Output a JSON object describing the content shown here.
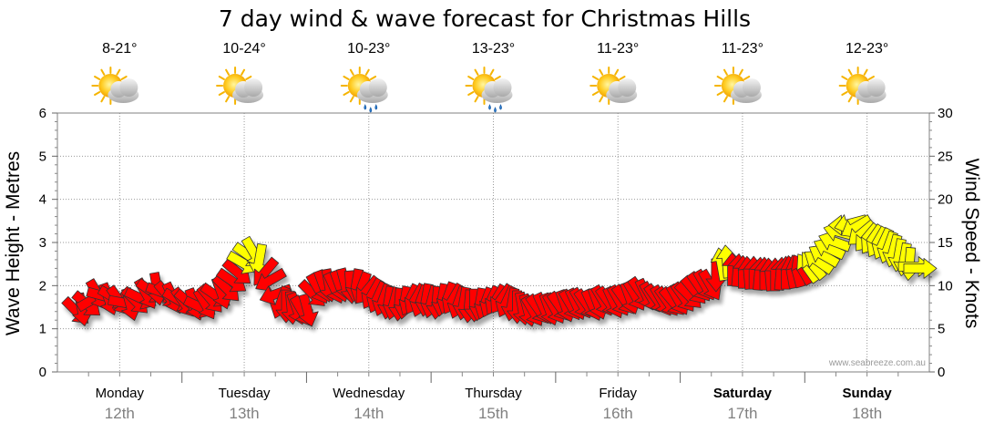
{
  "chart_data": {
    "type": "line",
    "title": "7 day wind & wave forecast for Christmas Hills",
    "ylabel": "Wave Height - Metres",
    "y2label": "Wind Speed - Knots",
    "ylim": [
      0,
      6
    ],
    "y2lim": [
      0,
      30
    ],
    "yticks": [
      "0",
      "1",
      "2",
      "3",
      "4",
      "5",
      "6"
    ],
    "y2ticks": [
      "0",
      "5",
      "10",
      "15",
      "20",
      "25",
      "30"
    ],
    "grid": true,
    "credit": "www.seabreeze.com.au",
    "days": [
      {
        "name": "Monday",
        "date": "12th",
        "temp": "8-21°",
        "icon": "partly-cloudy-icon",
        "weekend": false
      },
      {
        "name": "Tuesday",
        "date": "13th",
        "temp": "10-24°",
        "icon": "partly-cloudy-icon",
        "weekend": false
      },
      {
        "name": "Wednesday",
        "date": "14th",
        "temp": "10-23°",
        "icon": "showers-icon",
        "weekend": false
      },
      {
        "name": "Thursday",
        "date": "15th",
        "temp": "13-23°",
        "icon": "showers-icon",
        "weekend": false
      },
      {
        "name": "Friday",
        "date": "16th",
        "temp": "11-23°",
        "icon": "partly-cloudy-icon",
        "weekend": false
      },
      {
        "name": "Saturday",
        "date": "17th",
        "temp": "11-23°",
        "icon": "partly-cloudy-icon",
        "weekend": true
      },
      {
        "name": "Sunday",
        "date": "18th",
        "temp": "12-23°",
        "icon": "partly-cloudy-icon",
        "weekend": true
      }
    ],
    "colors": {
      "light_wind": "#ff0000",
      "strong_wind": "#ffff00",
      "arrow_stroke": "#333333",
      "date_text": "#808080",
      "grid": "#999999"
    },
    "wind_threshold_knots": 12,
    "series": [
      {
        "values_knots": [
          7,
          7.2,
          7.8,
          8.4,
          8.9,
          8.8,
          8.4,
          8.6,
          8.2,
          8.0,
          7.8,
          8.2,
          8.5,
          9,
          9.3,
          9.6,
          9.2,
          8.8,
          8.5,
          8.3,
          8.0,
          8.0,
          7.8,
          7.5,
          7.8,
          8.4,
          8.8,
          9.1,
          9.6,
          10.5,
          11.5,
          12.6,
          13.5,
          13.8,
          12.9,
          11.5,
          10.6,
          9,
          8,
          7.6,
          7.4,
          7.3,
          7.0,
          7.1,
          9.0,
          9.6,
          9.9,
          10.0,
          9.7,
          9.9,
          10.1,
          9.8,
          10.0,
          9.7,
          9.4,
          9.0,
          8.6,
          8.3,
          8.0,
          7.9,
          7.8,
          8.0,
          8.3,
          8.4,
          8.2,
          8.3,
          8.1,
          8.0,
          8.3,
          8.5,
          8.4,
          8.0,
          7.9,
          7.6,
          7.7,
          7.8,
          7.9,
          8.1,
          8.3,
          8.4,
          8.1,
          7.8,
          7.5,
          7.3,
          7.1,
          7.0,
          7.2,
          7.3,
          7.2,
          7.3,
          7.5,
          7.6,
          7.7,
          7.8,
          7.9,
          7.8,
          7.7,
          7.9,
          8.2,
          8.1,
          8.0,
          8.2,
          8.3,
          8.5,
          8.8,
          9.2,
          8.9,
          8.6,
          8.4,
          8.2,
          8.1,
          8.1,
          8.3,
          8.6,
          8.8,
          9.4,
          9.8,
          10.0,
          10.0,
          11.2,
          12.5,
          12.8,
          11.9,
          11.8,
          11.6,
          11.5,
          11.5,
          11.4,
          11.4,
          11.3,
          11.3,
          11.4,
          11.5,
          11.6,
          11.7,
          11.9,
          12.1,
          12.4,
          12.8,
          13.5,
          14.3,
          15.1,
          16.2,
          17.0,
          17.2,
          16.8,
          16.0,
          15.5,
          15.3,
          15.0,
          14.8,
          14.4,
          14.0,
          13.5,
          13.0,
          12.5,
          12.2,
          12.0
        ],
        "directions_deg": [
          45,
          80,
          40,
          330,
          60,
          15,
          70,
          30,
          55,
          10,
          75,
          45,
          25,
          60,
          35,
          80,
          20,
          50,
          65,
          30,
          55,
          40,
          70,
          25,
          60,
          50,
          35,
          70,
          45,
          35,
          40,
          30,
          35,
          60,
          100,
          130,
          150,
          160,
          110,
          90,
          85,
          70,
          60,
          75,
          45,
          60,
          70,
          80,
          65,
          70,
          75,
          85,
          100,
          110,
          130,
          120,
          115,
          110,
          100,
          105,
          95,
          100,
          115,
          120,
          110,
          100,
          105,
          95,
          100,
          110,
          120,
          110,
          100,
          95,
          90,
          100,
          110,
          115,
          120,
          125,
          115,
          100,
          90,
          80,
          75,
          60,
          55,
          65,
          70,
          60,
          55,
          70,
          60,
          65,
          60,
          55,
          65,
          70,
          60,
          55,
          65,
          60,
          55,
          70,
          60,
          55,
          65,
          60,
          55,
          60,
          55,
          50,
          60,
          55,
          45,
          50,
          55,
          60,
          60,
          90,
          260,
          265,
          270,
          275,
          270,
          265,
          270,
          275,
          270,
          265,
          270,
          275,
          270,
          260,
          255,
          240,
          235,
          230,
          215,
          210,
          205,
          200,
          195,
          180,
          165,
          150,
          140,
          130,
          125,
          120,
          115,
          110,
          105,
          100,
          100,
          95
        ]
      }
    ]
  }
}
